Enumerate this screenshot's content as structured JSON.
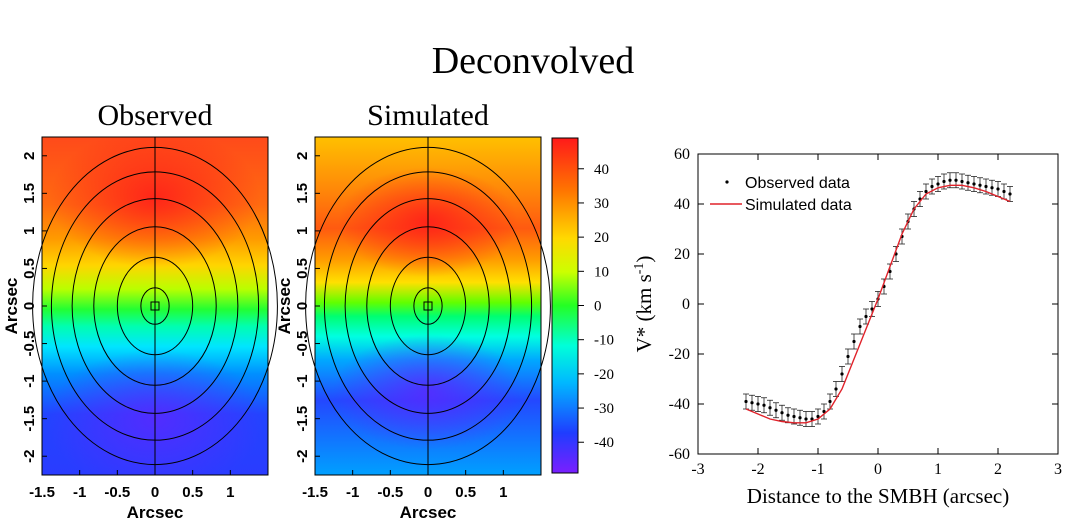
{
  "title": "Deconvolved",
  "chart_data": [
    {
      "type": "heatmap",
      "title": "Observed",
      "xlabel": "Arcsec",
      "ylabel": "Arcsec",
      "xticks": [
        "-1.5",
        "-1",
        "-0.5",
        "0",
        "0.5",
        "1"
      ],
      "yticks": [
        "-2",
        "-1.5",
        "-1",
        "-0.5",
        "0",
        "0.5",
        "1",
        "1.5",
        "2"
      ],
      "xlim": [
        -1.5,
        1.5
      ],
      "ylim": [
        -2.25,
        2.25
      ],
      "slit_x": 0,
      "center_marker": [
        0,
        0
      ],
      "ellipse_radii": [
        0.15,
        0.4,
        0.65,
        0.88,
        1.1,
        1.3
      ],
      "ellipse_ratio": 1.4
    },
    {
      "type": "heatmap",
      "title": "Simulated",
      "xlabel": "Arcsec",
      "ylabel": "Arcsec",
      "xticks": [
        "-1.5",
        "-1",
        "-0.5",
        "0",
        "0.5",
        "1"
      ],
      "yticks": [
        "-2",
        "-1.5",
        "-1",
        "-0.5",
        "0",
        "0.5",
        "1",
        "1.5",
        "2"
      ],
      "xlim": [
        -1.5,
        1.5
      ],
      "ylim": [
        -2.25,
        2.25
      ],
      "slit_x": 0,
      "center_marker": [
        0,
        0
      ],
      "ellipse_radii": [
        0.15,
        0.4,
        0.65,
        0.88,
        1.1,
        1.3
      ],
      "ellipse_ratio": 1.4
    },
    {
      "type": "colorbar",
      "ticks": [
        "40",
        "30",
        "20",
        "10",
        "0",
        "-10",
        "-20",
        "-30",
        "-40"
      ],
      "range": [
        -49,
        49
      ],
      "colors": [
        "#7a1fff",
        "#1f3dff",
        "#00b8ff",
        "#00ffd9",
        "#24ff24",
        "#ccff00",
        "#ffd900",
        "#ff7700",
        "#ff1a1a"
      ]
    },
    {
      "type": "scatter",
      "xlabel": "Distance to the SMBH (arcsec)",
      "ylabel": "V* (km s",
      "ylabel_sup": "-1",
      "ylabel_close": ")",
      "xlim": [
        -3,
        3
      ],
      "ylim": [
        -60,
        60
      ],
      "xticks": [
        "-3",
        "-2",
        "-1",
        "0",
        "1",
        "2",
        "3"
      ],
      "yticks": [
        "-60",
        "-40",
        "-20",
        "0",
        "20",
        "40",
        "60"
      ],
      "legend": [
        "Observed data",
        "Simulated data"
      ],
      "legend_position": "top-left",
      "series": [
        {
          "name": "Observed data",
          "color": "#000000",
          "x": [
            -2.2,
            -2.1,
            -2.0,
            -1.9,
            -1.8,
            -1.7,
            -1.6,
            -1.5,
            -1.4,
            -1.3,
            -1.2,
            -1.1,
            -1.0,
            -0.9,
            -0.8,
            -0.7,
            -0.6,
            -0.5,
            -0.4,
            -0.3,
            -0.2,
            -0.1,
            0.0,
            0.1,
            0.2,
            0.3,
            0.4,
            0.5,
            0.6,
            0.7,
            0.8,
            0.9,
            1.0,
            1.1,
            1.2,
            1.3,
            1.4,
            1.5,
            1.6,
            1.7,
            1.8,
            1.9,
            2.0,
            2.1,
            2.2
          ],
          "y": [
            -39,
            -39.5,
            -40,
            -40.5,
            -41.5,
            -42.5,
            -43.5,
            -44.5,
            -45,
            -45.5,
            -46,
            -46,
            -45,
            -43,
            -39,
            -34,
            -28,
            -21,
            -15,
            -9,
            -5,
            -2,
            2,
            7,
            13,
            20,
            27,
            33,
            38,
            42,
            45,
            47,
            48,
            49,
            49.5,
            49.5,
            49,
            48.5,
            48,
            47.5,
            47,
            46.5,
            46,
            45,
            44
          ],
          "err": 3
        },
        {
          "name": "Simulated data",
          "color": "#e0222a",
          "x": [
            -2.2,
            -2.0,
            -1.8,
            -1.6,
            -1.4,
            -1.2,
            -1.0,
            -0.8,
            -0.6,
            -0.4,
            -0.2,
            0.0,
            0.2,
            0.4,
            0.6,
            0.8,
            1.0,
            1.2,
            1.4,
            1.6,
            1.8,
            2.0,
            2.2
          ],
          "y": [
            -42,
            -44,
            -46,
            -47,
            -47.5,
            -47.5,
            -46,
            -42,
            -34,
            -22,
            -10,
            2,
            15,
            28,
            38,
            44,
            46.5,
            47.5,
            47.5,
            46.5,
            45,
            43,
            41
          ]
        }
      ]
    }
  ]
}
